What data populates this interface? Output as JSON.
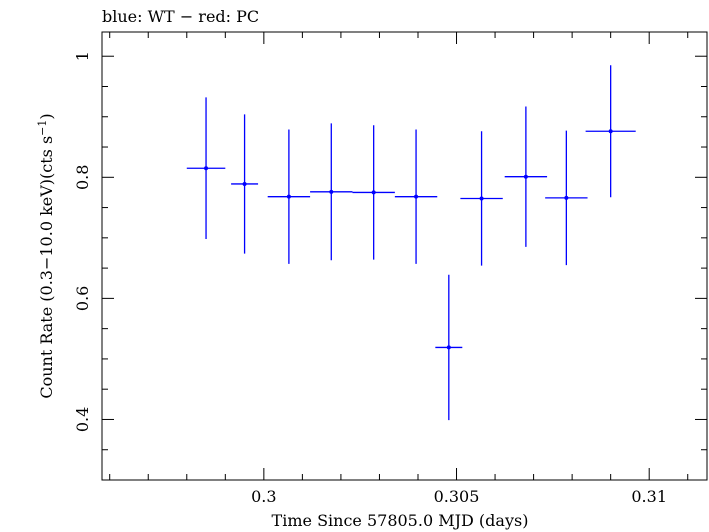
{
  "chart_data": {
    "type": "scatter",
    "title": "blue: WT − red: PC",
    "xlabel": "Time Since 57805.0 MJD (days)",
    "ylabel_main": "Count Rate (0.3−10.0 keV)(cts s",
    "ylabel_sup": "−1",
    "ylabel_close": ")",
    "xlim": [
      0.2958,
      0.3115
    ],
    "ylim": [
      0.3,
      1.04
    ],
    "xticks": [
      0.3,
      0.305,
      0.31
    ],
    "xtick_labels": [
      "0.3",
      "0.305",
      "0.31"
    ],
    "yticks": [
      0.4,
      0.6,
      0.8,
      1.0
    ],
    "ytick_labels": [
      "0.4",
      "0.6",
      "0.8",
      "1"
    ],
    "series": [
      {
        "color": "#0000ff",
        "points": [
          {
            "x": 0.2985,
            "xerr": 0.0005,
            "y": 0.815,
            "yerr": 0.117
          },
          {
            "x": 0.2995,
            "xerr": 0.00035,
            "y": 0.789,
            "yerr": 0.115
          },
          {
            "x": 0.30065,
            "xerr": 0.00055,
            "y": 0.768,
            "yerr": 0.111
          },
          {
            "x": 0.30175,
            "xerr": 0.00055,
            "y": 0.776,
            "yerr": 0.113
          },
          {
            "x": 0.30285,
            "xerr": 0.00055,
            "y": 0.775,
            "yerr": 0.111
          },
          {
            "x": 0.30395,
            "xerr": 0.00055,
            "y": 0.768,
            "yerr": 0.111
          },
          {
            "x": 0.3048,
            "xerr": 0.00035,
            "y": 0.519,
            "yerr": 0.12
          },
          {
            "x": 0.30565,
            "xerr": 0.00055,
            "y": 0.765,
            "yerr": 0.111
          },
          {
            "x": 0.3068,
            "xerr": 0.00055,
            "y": 0.801,
            "yerr": 0.116
          },
          {
            "x": 0.30785,
            "xerr": 0.00055,
            "y": 0.766,
            "yerr": 0.111
          },
          {
            "x": 0.309,
            "xerr": 0.00065,
            "y": 0.876,
            "yerr": 0.109
          }
        ]
      }
    ]
  }
}
